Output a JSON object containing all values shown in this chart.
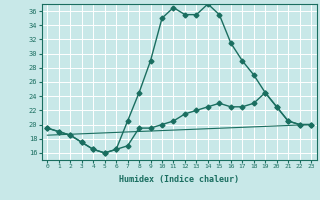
{
  "xlabel": "Humidex (Indice chaleur)",
  "bg_color": "#c8e8e8",
  "grid_color": "#ffffff",
  "line_color": "#1a6e60",
  "xlim": [
    -0.5,
    23.5
  ],
  "ylim": [
    15,
    37
  ],
  "yticks": [
    16,
    18,
    20,
    22,
    24,
    26,
    28,
    30,
    32,
    34,
    36
  ],
  "xticks": [
    0,
    1,
    2,
    3,
    4,
    5,
    6,
    7,
    8,
    9,
    10,
    11,
    12,
    13,
    14,
    15,
    16,
    17,
    18,
    19,
    20,
    21,
    22,
    23
  ],
  "series": [
    {
      "x": [
        0,
        1,
        2,
        3,
        4,
        5,
        6,
        7,
        8,
        9,
        10,
        11,
        12,
        13,
        14,
        15,
        16,
        17,
        18,
        19,
        20,
        21,
        22,
        23
      ],
      "y": [
        19.5,
        19.0,
        18.5,
        17.5,
        16.5,
        16.0,
        16.5,
        20.5,
        24.5,
        29.0,
        35.0,
        36.5,
        35.5,
        35.5,
        37.0,
        35.5,
        31.5,
        29.0,
        27.0,
        24.5,
        22.5,
        20.5,
        20.0,
        20.0
      ],
      "marker": "D",
      "markersize": 2.5,
      "linewidth": 1.0,
      "linestyle": "-"
    },
    {
      "x": [
        0,
        1,
        2,
        3,
        4,
        5,
        6,
        7,
        8,
        9,
        10,
        11,
        12,
        13,
        14,
        15,
        16,
        17,
        18,
        19,
        20,
        21,
        22,
        23
      ],
      "y": [
        19.5,
        19.0,
        18.5,
        17.5,
        16.5,
        16.0,
        16.5,
        17.0,
        19.5,
        19.5,
        20.0,
        20.5,
        21.5,
        22.0,
        22.5,
        23.0,
        22.5,
        22.5,
        23.0,
        24.5,
        22.5,
        20.5,
        20.0,
        20.0
      ],
      "marker": "D",
      "markersize": 2.5,
      "linewidth": 1.0,
      "linestyle": "-"
    },
    {
      "x": [
        0,
        23
      ],
      "y": [
        18.5,
        20.0
      ],
      "marker": null,
      "markersize": 0,
      "linewidth": 0.8,
      "linestyle": "-"
    }
  ]
}
